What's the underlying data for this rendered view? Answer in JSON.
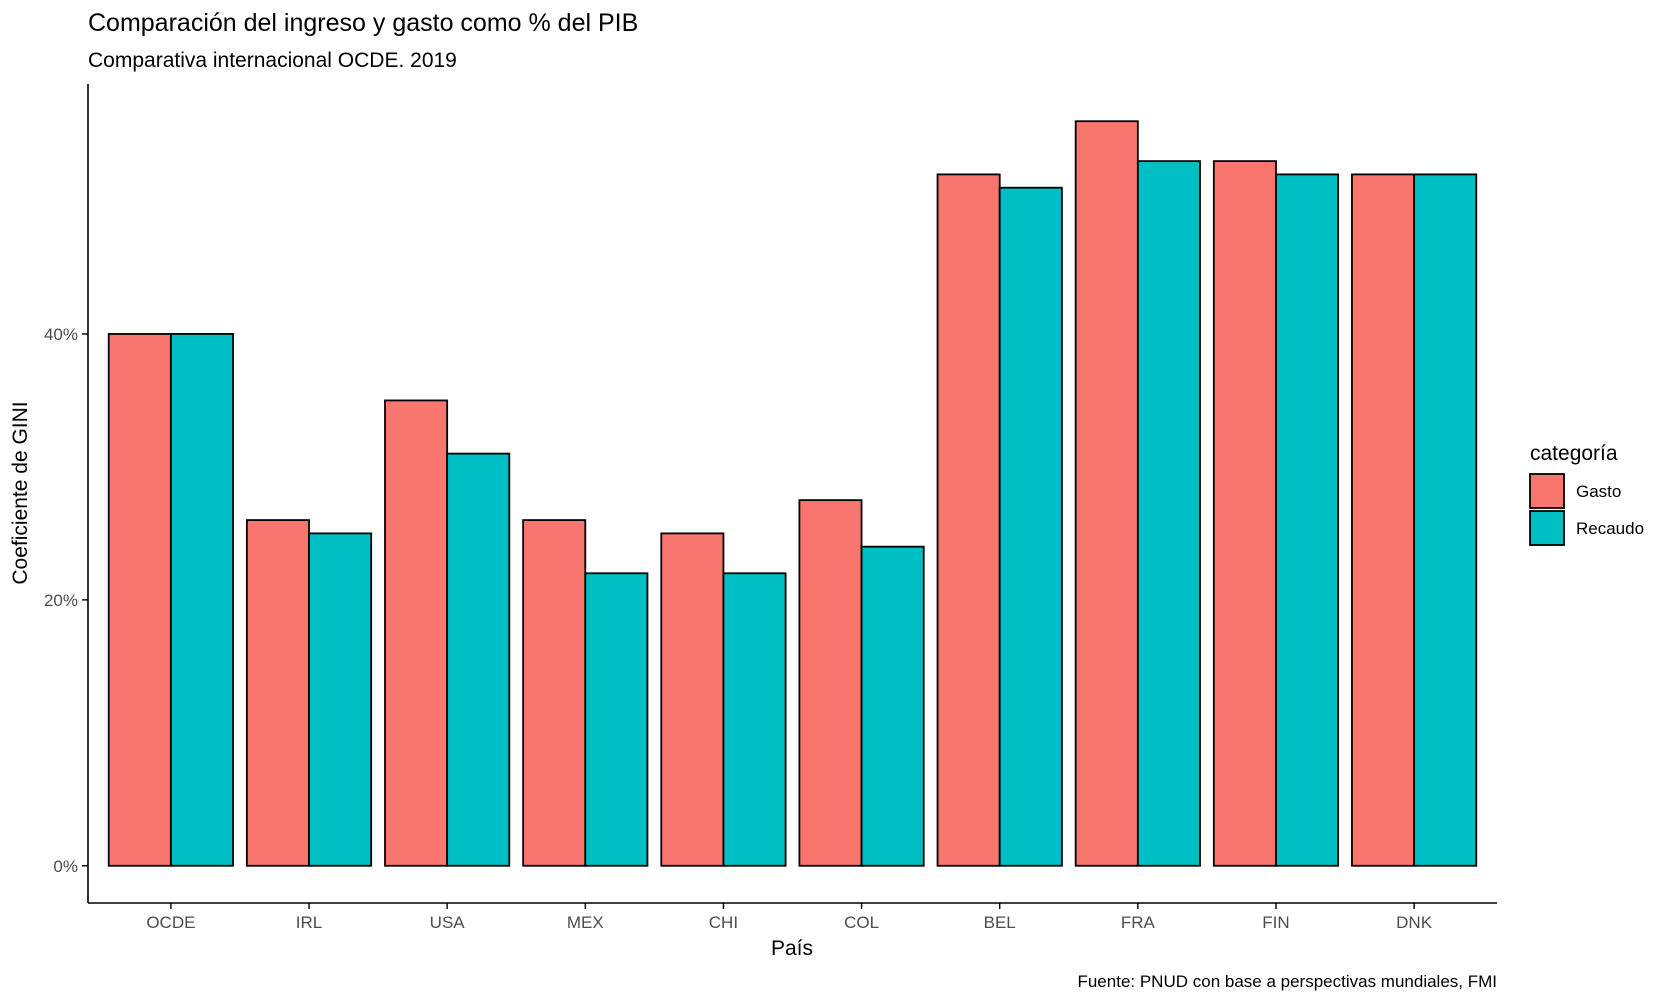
{
  "chart_data": {
    "type": "bar",
    "title": "Comparación del ingreso y gasto como % del PIB",
    "subtitle": "Comparativa internacional OCDE. 2019",
    "xlabel": "País",
    "ylabel": "Coeficiente de GINI",
    "caption": "Fuente: PNUD con base a perspectivas mundiales, FMI",
    "categories": [
      "OCDE",
      "IRL",
      "USA",
      "MEX",
      "CHI",
      "COL",
      "BEL",
      "FRA",
      "FIN",
      "DNK"
    ],
    "series": [
      {
        "name": "Gasto",
        "color": "#F8766D",
        "values": [
          40,
          26,
          35,
          26,
          25,
          27.5,
          52,
          56,
          53,
          52
        ]
      },
      {
        "name": "Recaudo",
        "color": "#00BFC4",
        "values": [
          40,
          25,
          31,
          22,
          22,
          24,
          51,
          53,
          52,
          52
        ]
      }
    ],
    "ylim": [
      -2.8,
      58.8
    ],
    "yticks": [
      0,
      20,
      40
    ],
    "ytick_labels": [
      "0%",
      "20%",
      "40%"
    ],
    "grid": false,
    "legend": {
      "title": "categoría",
      "position": "right"
    }
  }
}
